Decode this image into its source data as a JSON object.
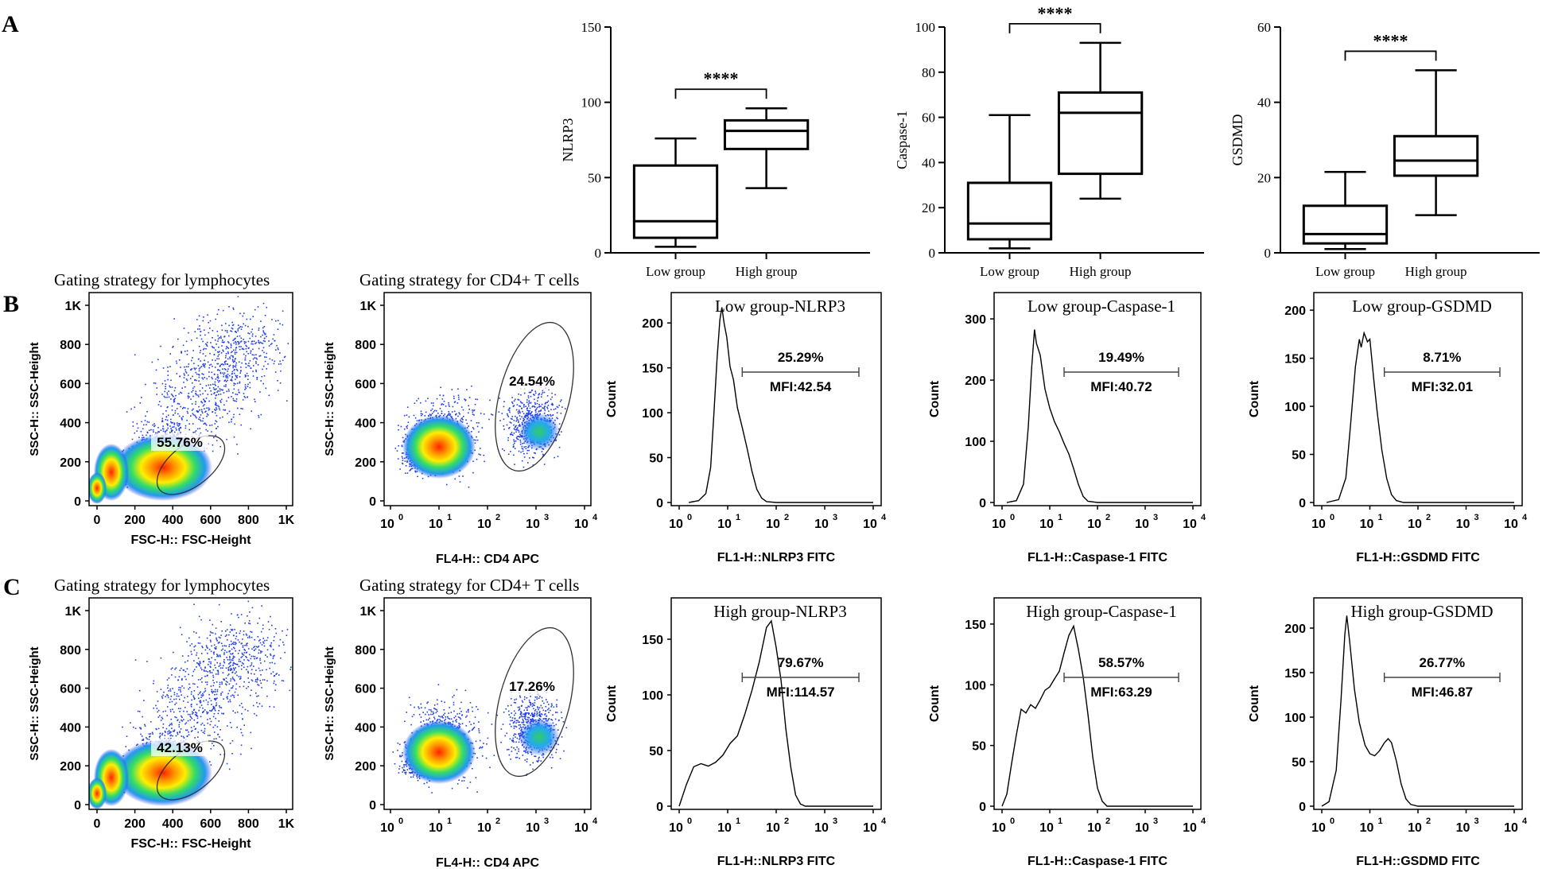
{
  "panel_labels": [
    "A",
    "B",
    "C"
  ],
  "chart_data": [
    {
      "type": "boxplot",
      "title": "",
      "ylabel": "NLRP3",
      "ylim": [
        0,
        150
      ],
      "yticks": [
        "0",
        "50",
        "100",
        "150"
      ],
      "categories": [
        "Low group",
        "High group"
      ],
      "boxes": [
        {
          "min": 4,
          "q1": 10,
          "median": 21,
          "q3": 58,
          "max": 76
        },
        {
          "min": 43,
          "q1": 69,
          "median": 81,
          "q3": 88,
          "max": 96
        }
      ],
      "significance": "****"
    },
    {
      "type": "boxplot",
      "title": "",
      "ylabel": "Caspase-1",
      "ylim": [
        0,
        100
      ],
      "yticks": [
        "0",
        "20",
        "40",
        "60",
        "80",
        "100"
      ],
      "categories": [
        "Low group",
        "High group"
      ],
      "boxes": [
        {
          "min": 2,
          "q1": 6,
          "median": 13,
          "q3": 31,
          "max": 61
        },
        {
          "min": 24,
          "q1": 35,
          "median": 62,
          "q3": 71,
          "max": 93
        }
      ],
      "significance": "****"
    },
    {
      "type": "boxplot",
      "title": "",
      "ylabel": "GSDMD",
      "ylim": [
        0,
        60
      ],
      "yticks": [
        "0",
        "20",
        "40",
        "60"
      ],
      "categories": [
        "Low group",
        "High group"
      ],
      "boxes": [
        {
          "min": 1,
          "q1": 2.5,
          "median": 5,
          "q3": 12.5,
          "max": 21.5
        },
        {
          "min": 10,
          "q1": 20.5,
          "median": 24.5,
          "q3": 31,
          "max": 48.5
        }
      ],
      "significance": "****"
    }
  ],
  "flow": {
    "lymph_titles": [
      "Gating strategy for lymphocytes",
      "Gating strategy for lymphocytes"
    ],
    "cd4_titles": [
      "Gating strategy for CD4+ T cells",
      "Gating strategy for CD4+ T cells"
    ],
    "scatter_ylabel": "SSC-H:: SSC-Height",
    "scatter_xlabel": "FSC-H:: FSC-Height",
    "scatter_yticks": [
      "0",
      "200",
      "400",
      "600",
      "800",
      "1K"
    ],
    "scatter_xticks": [
      "0",
      "200",
      "400",
      "600",
      "800",
      "1K"
    ],
    "cd4_xlabel": "FL4-H:: CD4 APC",
    "log_base": "10",
    "log_exps": [
      "0",
      "1",
      "2",
      "3",
      "4"
    ],
    "lymph_gates": [
      "55.76%",
      "42.13%"
    ],
    "cd4_gates": [
      "24.54%",
      "17.26%"
    ]
  },
  "histograms": [
    {
      "title": "Low group-NLRP3",
      "percent": "25.29%",
      "mfi": "MFI:42.54",
      "ylabel": "Count",
      "xlabel": "FL1-H::NLRP3 FITC",
      "ymax": 225,
      "yticks": [
        "0",
        "50",
        "100",
        "150",
        "200"
      ],
      "ytick_values": [
        0,
        50,
        100,
        150,
        200
      ],
      "profile": [
        [
          0.2,
          0
        ],
        [
          0.4,
          2
        ],
        [
          0.55,
          10
        ],
        [
          0.65,
          40
        ],
        [
          0.72,
          100
        ],
        [
          0.78,
          160
        ],
        [
          0.84,
          205
        ],
        [
          0.88,
          218
        ],
        [
          0.93,
          195
        ],
        [
          0.98,
          180
        ],
        [
          1.05,
          155
        ],
        [
          1.12,
          135
        ],
        [
          1.2,
          108
        ],
        [
          1.3,
          85
        ],
        [
          1.4,
          60
        ],
        [
          1.5,
          35
        ],
        [
          1.6,
          15
        ],
        [
          1.7,
          5
        ],
        [
          1.8,
          1
        ],
        [
          2.0,
          0
        ],
        [
          4,
          0
        ]
      ]
    },
    {
      "title": "Low group-Caspase-1",
      "percent": "19.49%",
      "mfi": "MFI:40.72",
      "ylabel": "Count",
      "xlabel": "FL1-H::Caspase-1 FITC",
      "ymax": 330,
      "yticks": [
        "0",
        "100",
        "200",
        "300"
      ],
      "ytick_values": [
        0,
        100,
        200,
        300
      ],
      "profile": [
        [
          0.1,
          0
        ],
        [
          0.3,
          3
        ],
        [
          0.45,
          30
        ],
        [
          0.55,
          120
        ],
        [
          0.62,
          220
        ],
        [
          0.68,
          275
        ],
        [
          0.72,
          268
        ],
        [
          0.8,
          235
        ],
        [
          0.9,
          185
        ],
        [
          1.0,
          150
        ],
        [
          1.1,
          130
        ],
        [
          1.2,
          115
        ],
        [
          1.3,
          98
        ],
        [
          1.4,
          80
        ],
        [
          1.5,
          55
        ],
        [
          1.6,
          30
        ],
        [
          1.7,
          10
        ],
        [
          1.8,
          2
        ],
        [
          2.0,
          0
        ],
        [
          4,
          0
        ]
      ]
    },
    {
      "title": "Low group-GSDMD",
      "percent": "8.71%",
      "mfi": "MFI:32.01",
      "ylabel": "Count",
      "xlabel": "FL1-H::GSDMD FITC",
      "ymax": 210,
      "yticks": [
        "0",
        "50",
        "100",
        "150",
        "200"
      ],
      "ytick_values": [
        0,
        50,
        100,
        150,
        200
      ],
      "profile": [
        [
          0.1,
          0
        ],
        [
          0.35,
          3
        ],
        [
          0.5,
          25
        ],
        [
          0.6,
          80
        ],
        [
          0.7,
          145
        ],
        [
          0.78,
          170
        ],
        [
          0.82,
          160
        ],
        [
          0.88,
          178
        ],
        [
          0.95,
          170
        ],
        [
          1.0,
          165
        ],
        [
          1.08,
          130
        ],
        [
          1.15,
          95
        ],
        [
          1.25,
          55
        ],
        [
          1.35,
          25
        ],
        [
          1.45,
          8
        ],
        [
          1.55,
          2
        ],
        [
          1.7,
          0
        ],
        [
          4,
          0
        ]
      ]
    },
    {
      "title": "High group-NLRP3",
      "percent": "79.67%",
      "mfi": "MFI:114.57",
      "ylabel": "Count",
      "xlabel": "FL1-H::NLRP3 FITC",
      "ymax": 180,
      "yticks": [
        "0",
        "50",
        "100",
        "150"
      ],
      "ytick_values": [
        0,
        50,
        100,
        150
      ],
      "profile": [
        [
          0.0,
          0
        ],
        [
          0.15,
          20
        ],
        [
          0.3,
          35
        ],
        [
          0.45,
          38
        ],
        [
          0.6,
          35
        ],
        [
          0.75,
          40
        ],
        [
          0.9,
          45
        ],
        [
          1.05,
          55
        ],
        [
          1.2,
          65
        ],
        [
          1.35,
          80
        ],
        [
          1.5,
          105
        ],
        [
          1.65,
          130
        ],
        [
          1.8,
          160
        ],
        [
          1.9,
          165
        ],
        [
          2.0,
          140
        ],
        [
          2.1,
          110
        ],
        [
          2.2,
          70
        ],
        [
          2.3,
          35
        ],
        [
          2.4,
          10
        ],
        [
          2.5,
          2
        ],
        [
          2.6,
          0
        ],
        [
          4,
          0
        ]
      ]
    },
    {
      "title": "High group-Caspase-1",
      "percent": "58.57%",
      "mfi": "MFI:63.29",
      "ylabel": "Count",
      "xlabel": "FL1-H::Caspase-1 FITC",
      "ymax": 165,
      "yticks": [
        "0",
        "50",
        "100",
        "150"
      ],
      "ytick_values": [
        0,
        50,
        100,
        150
      ],
      "profile": [
        [
          0.0,
          0
        ],
        [
          0.1,
          10
        ],
        [
          0.2,
          35
        ],
        [
          0.3,
          60
        ],
        [
          0.4,
          80
        ],
        [
          0.5,
          75
        ],
        [
          0.6,
          85
        ],
        [
          0.7,
          80
        ],
        [
          0.8,
          90
        ],
        [
          0.9,
          95
        ],
        [
          1.0,
          100
        ],
        [
          1.1,
          105
        ],
        [
          1.2,
          110
        ],
        [
          1.3,
          125
        ],
        [
          1.4,
          140
        ],
        [
          1.5,
          145
        ],
        [
          1.6,
          130
        ],
        [
          1.7,
          105
        ],
        [
          1.8,
          75
        ],
        [
          1.9,
          40
        ],
        [
          2.0,
          15
        ],
        [
          2.1,
          4
        ],
        [
          2.2,
          0
        ],
        [
          4,
          0
        ]
      ]
    },
    {
      "title": "High group-GSDMD",
      "percent": "26.77%",
      "mfi": "MFI:46.87",
      "ylabel": "Count",
      "xlabel": "FL1-H::GSDMD FITC",
      "ymax": 225,
      "yticks": [
        "0",
        "50",
        "100",
        "150",
        "200"
      ],
      "ytick_values": [
        0,
        50,
        100,
        150,
        200
      ],
      "profile": [
        [
          0.0,
          0
        ],
        [
          0.15,
          5
        ],
        [
          0.3,
          40
        ],
        [
          0.4,
          120
        ],
        [
          0.48,
          190
        ],
        [
          0.52,
          208
        ],
        [
          0.58,
          185
        ],
        [
          0.68,
          130
        ],
        [
          0.78,
          95
        ],
        [
          0.9,
          70
        ],
        [
          1.0,
          60
        ],
        [
          1.1,
          58
        ],
        [
          1.2,
          62
        ],
        [
          1.3,
          70
        ],
        [
          1.38,
          75
        ],
        [
          1.45,
          72
        ],
        [
          1.55,
          50
        ],
        [
          1.65,
          25
        ],
        [
          1.75,
          8
        ],
        [
          1.85,
          2
        ],
        [
          2.0,
          0
        ],
        [
          4,
          0
        ]
      ]
    }
  ]
}
